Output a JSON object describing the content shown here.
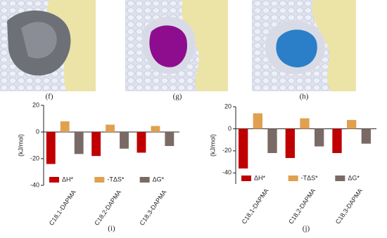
{
  "image_panels": [
    {
      "label": "(f)"
    },
    {
      "label": "(g)"
    },
    {
      "label": "(h)"
    }
  ],
  "chart_data": [
    {
      "type": "bar",
      "panel_label": "(i)",
      "y_label": "(kJ/mol)",
      "categories": [
        "C18,1-DAPMA",
        "C18,2-DAPMA",
        "C18,3-DAPMA"
      ],
      "series": [
        {
          "name": "ΔH*",
          "color": "#c00000",
          "values": [
            -24,
            -18,
            -15.5
          ]
        },
        {
          "name": "-TΔS*",
          "color": "#e0a050",
          "values": [
            8,
            5.5,
            4.5
          ]
        },
        {
          "name": "ΔG*",
          "color": "#7a6a65",
          "values": [
            -16.5,
            -12.5,
            -10.5
          ]
        }
      ],
      "ylim": [
        -40,
        20
      ],
      "yticks": [
        -40,
        -20,
        0,
        20
      ]
    },
    {
      "type": "bar",
      "panel_label": "(j)",
      "y_label": "(kJ/mol)",
      "categories": [
        "C18,1-DAPMA",
        "C18,2-DAPMA",
        "C18,3-DAPMA"
      ],
      "series": [
        {
          "name": "ΔH*",
          "color": "#c00000",
          "values": [
            -36,
            -26.5,
            -22
          ]
        },
        {
          "name": "-TΔS*",
          "color": "#e0a050",
          "values": [
            14,
            9.5,
            8
          ]
        },
        {
          "name": "ΔG*",
          "color": "#7a6a65",
          "values": [
            -22,
            -16,
            -13.5
          ]
        }
      ],
      "ylim": [
        -50,
        20
      ],
      "yticks": [
        -40,
        -20,
        0,
        20
      ]
    }
  ]
}
